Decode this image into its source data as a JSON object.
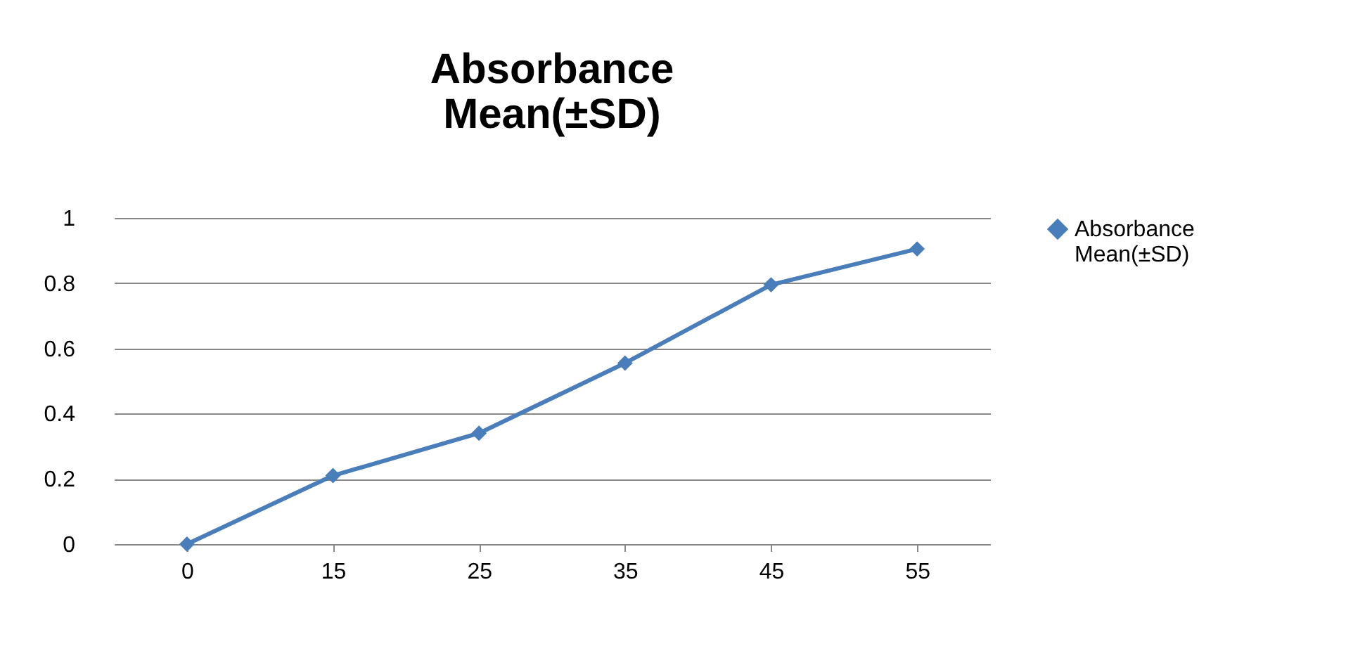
{
  "chart_data": {
    "type": "line",
    "title": "Absorbance Mean(±SD)",
    "categories": [
      "0",
      "15",
      "25",
      "35",
      "45",
      "55"
    ],
    "series": [
      {
        "name": "Absorbance Mean(±SD)",
        "color": "#4a7ebb",
        "values": [
          0,
          0.21,
          0.34,
          0.555,
          0.795,
          0.905
        ]
      }
    ],
    "ylim": [
      0,
      1
    ],
    "yticks": [
      0,
      0.2,
      0.4,
      0.6,
      0.8,
      1
    ],
    "grid": "y",
    "legend": "right",
    "marker": "diamond",
    "line_style": "solid"
  }
}
